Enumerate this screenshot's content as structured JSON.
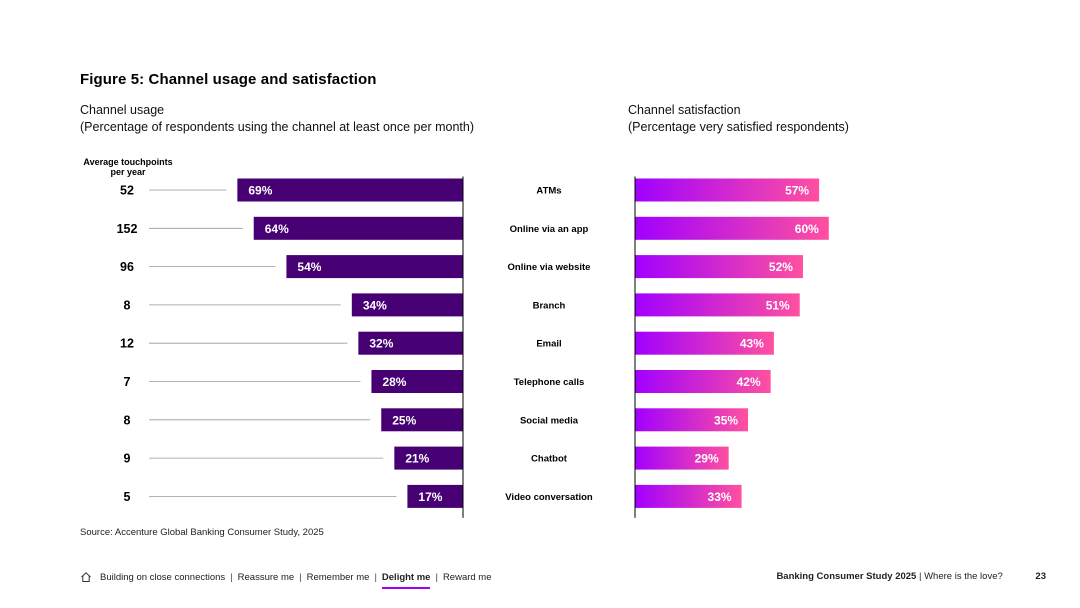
{
  "figure_title": "Figure 5: Channel usage and satisfaction",
  "left_subtitle": {
    "line1": "Channel usage",
    "line2": "(Percentage of respondents using the channel at least once per month)"
  },
  "right_subtitle": {
    "line1": "Channel satisfaction",
    "line2": "(Percentage very satisfied respondents)"
  },
  "touchpoints_header": {
    "line1": "Average touchpoints",
    "line2": "per year"
  },
  "colors": {
    "usage_bar": "#460073",
    "satisfaction_start": "#a100ff",
    "satisfaction_end": "#ff50a0",
    "leader_line": "#999999",
    "axis_line": "#000000"
  },
  "chart_data": {
    "type": "bar",
    "title": "Figure 5: Channel usage and satisfaction",
    "categories": [
      "ATMs",
      "Online via an app",
      "Online via website",
      "Branch",
      "Email",
      "Telephone calls",
      "Social media",
      "Chatbot",
      "Video conversation"
    ],
    "touchpoints": [
      52,
      152,
      96,
      8,
      12,
      7,
      8,
      9,
      5
    ],
    "series": [
      {
        "name": "Channel usage",
        "values": [
          69,
          64,
          54,
          34,
          32,
          28,
          25,
          21,
          17
        ],
        "direction": "left"
      },
      {
        "name": "Channel satisfaction",
        "values": [
          57,
          60,
          52,
          51,
          43,
          42,
          35,
          29,
          33
        ],
        "direction": "right"
      }
    ],
    "value_suffix": "%",
    "xlim": [
      0,
      100
    ]
  },
  "source": "Source: Accenture Global Banking Consumer Study, 2025",
  "footer": {
    "nav": [
      "Building on close connections",
      "Reassure me",
      "Remember me",
      "Delight me",
      "Reward me"
    ],
    "active_index": 3,
    "separator": "|",
    "report_title": "Banking Consumer Study 2025",
    "report_subtitle": "Where is the love?",
    "page_number": "23"
  }
}
